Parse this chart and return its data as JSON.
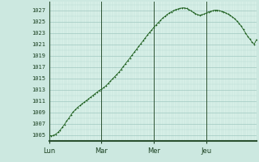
{
  "background_color": "#cce8e0",
  "plot_bg_color": "#d8f0e8",
  "grid_color_minor": "#b8d8d0",
  "grid_color_major": "#a0c8c0",
  "line_color": "#1a5c1a",
  "marker_color": "#1a5c1a",
  "tick_label_color": "#1a4020",
  "axis_label_color": "#1a4020",
  "ylim": [
    1004,
    1028.5
  ],
  "yticks": [
    1005,
    1007,
    1009,
    1011,
    1013,
    1015,
    1017,
    1019,
    1021,
    1023,
    1025,
    1027
  ],
  "day_labels": [
    "Lun",
    "Mar",
    "Mer",
    "Jeu"
  ],
  "day_positions": [
    0,
    24,
    48,
    72
  ],
  "total_hours": 96,
  "pressure_data": [
    1005.0,
    1004.9,
    1005.0,
    1005.2,
    1005.5,
    1005.9,
    1006.4,
    1006.9,
    1007.5,
    1008.0,
    1008.6,
    1009.1,
    1009.5,
    1009.9,
    1010.2,
    1010.5,
    1010.8,
    1011.1,
    1011.4,
    1011.7,
    1012.0,
    1012.3,
    1012.6,
    1012.9,
    1013.1,
    1013.4,
    1013.7,
    1014.1,
    1014.5,
    1014.9,
    1015.3,
    1015.7,
    1016.1,
    1016.6,
    1017.1,
    1017.6,
    1018.1,
    1018.6,
    1019.1,
    1019.6,
    1020.1,
    1020.6,
    1021.1,
    1021.6,
    1022.1,
    1022.6,
    1023.1,
    1023.5,
    1024.0,
    1024.4,
    1024.8,
    1025.2,
    1025.6,
    1025.9,
    1026.2,
    1026.5,
    1026.7,
    1026.9,
    1027.1,
    1027.2,
    1027.3,
    1027.4,
    1027.4,
    1027.3,
    1027.1,
    1026.9,
    1026.6,
    1026.4,
    1026.2,
    1026.1,
    1026.2,
    1026.3,
    1026.5,
    1026.7,
    1026.8,
    1026.9,
    1027.0,
    1027.0,
    1026.9,
    1026.8,
    1026.7,
    1026.5,
    1026.3,
    1026.1,
    1025.8,
    1025.5,
    1025.1,
    1024.7,
    1024.2,
    1023.6,
    1023.0,
    1022.4,
    1021.9,
    1021.4,
    1021.0,
    1021.8
  ]
}
